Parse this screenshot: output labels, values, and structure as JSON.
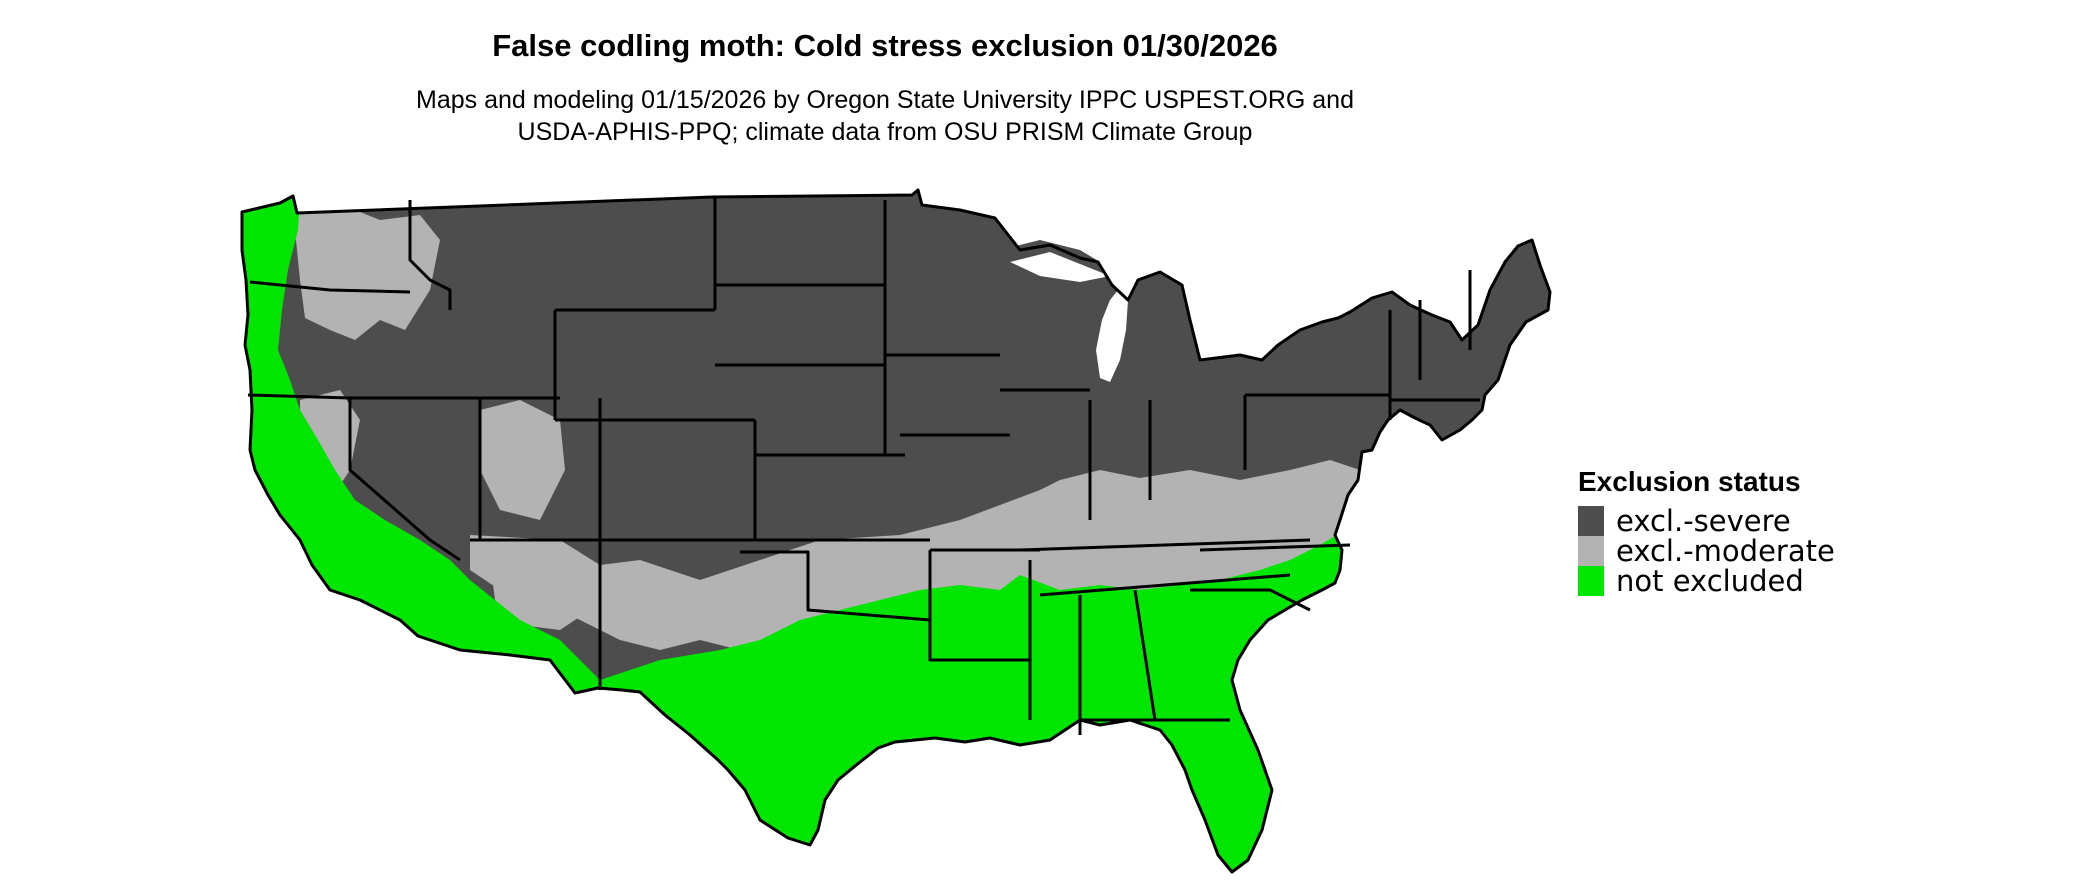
{
  "title": "False codling moth: Cold stress exclusion 01/30/2026",
  "subtitle_lines": [
    "Maps and modeling 01/15/2026 by Oregon State University IPPC USPEST.ORG and",
    "USDA-APHIS-PPQ; climate data from OSU PRISM Climate Group"
  ],
  "legend": {
    "title": "Exclusion status",
    "items": [
      {
        "label": "excl.-severe",
        "color": "#4d4d4d"
      },
      {
        "label": "excl.-moderate",
        "color": "#b3b3b3"
      },
      {
        "label": "not excluded",
        "color": "#00e600"
      }
    ]
  },
  "colors": {
    "severe": "#4d4d4d",
    "moderate": "#b3b3b3",
    "not_excluded": "#00e600",
    "state_border": "#000000"
  }
}
